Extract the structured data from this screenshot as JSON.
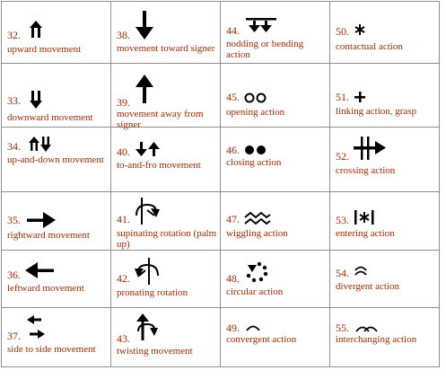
{
  "cells": [
    {
      "num": "32.",
      "label": "upward movement",
      "icon": "double-upward-arrow-icon"
    },
    {
      "num": "38.",
      "label": "movement toward signer",
      "icon": "down-arrow-icon"
    },
    {
      "num": "44.",
      "label": "nodding or bending action",
      "icon": "bar-double-down-arrow-icon"
    },
    {
      "num": "50.",
      "label": "contactual action",
      "icon": "asterisk-icon"
    },
    {
      "num": "33.",
      "label": "downward movement",
      "icon": "double-downward-arrow-icon"
    },
    {
      "num": "39.",
      "label": "movement away from signer",
      "icon": "up-arrow-icon"
    },
    {
      "num": "45.",
      "label": "opening action",
      "icon": "two-open-circles-icon"
    },
    {
      "num": "51.",
      "label": "linking action, grasp",
      "icon": "plus-icon"
    },
    {
      "num": "34.",
      "label": "up-and-down movement",
      "icon": "up-down-double-arrows-icon"
    },
    {
      "num": "40.",
      "label": "to-and-fro movement",
      "icon": "down-up-arrows-icon"
    },
    {
      "num": "46.",
      "label": "closing action",
      "icon": "two-filled-circles-icon"
    },
    {
      "num": "52.",
      "label": "crossing action",
      "icon": "crossing-arrow-icon"
    },
    {
      "num": "35.",
      "label": "rightward movement",
      "icon": "right-arrow-icon"
    },
    {
      "num": "41.",
      "label": "supinating rotation (palm up)",
      "icon": "supinating-rotation-icon"
    },
    {
      "num": "47.",
      "label": "wiggling action",
      "icon": "zigzag-wiggle-icon"
    },
    {
      "num": "53.",
      "label": "entering action",
      "icon": "bracketed-asterisk-icon"
    },
    {
      "num": "36.",
      "label": "leftward movement",
      "icon": "left-arrow-icon"
    },
    {
      "num": "42.",
      "label": "pronating rotation",
      "icon": "pronating-rotation-icon"
    },
    {
      "num": "48.",
      "label": "circular action",
      "icon": "dotted-circle-icon"
    },
    {
      "num": "54.",
      "label": "divergent action",
      "icon": "divergent-arcs-icon"
    },
    {
      "num": "37.",
      "label": "side to side movement",
      "icon": "side-to-side-arrows-icon"
    },
    {
      "num": "43.",
      "label": "twisting movement",
      "icon": "twisting-arrow-icon"
    },
    {
      "num": "49.",
      "label": "convergent action",
      "icon": "convergent-arc-icon"
    },
    {
      "num": "55.",
      "label": "interchanging action",
      "icon": "interchanging-arcs-icon"
    }
  ]
}
